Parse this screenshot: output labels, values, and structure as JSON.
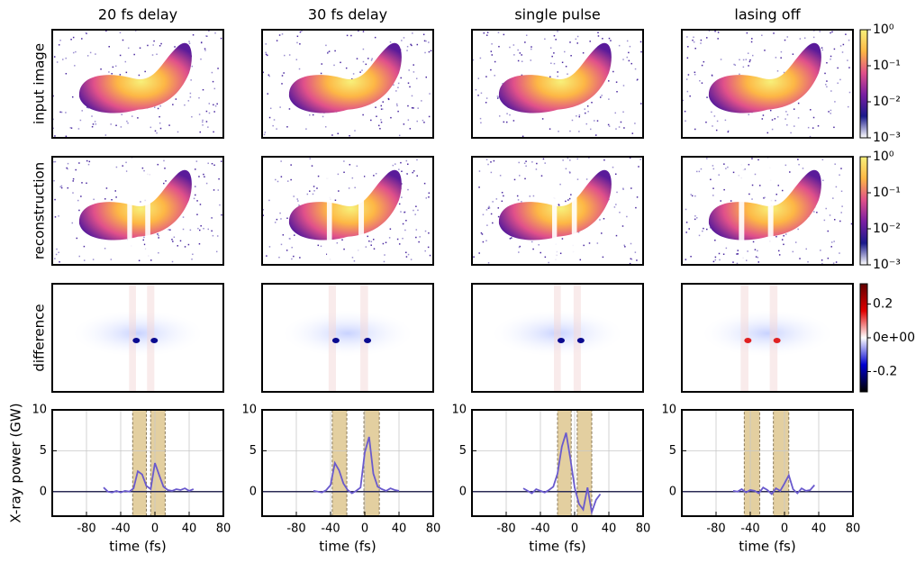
{
  "row_labels": [
    "input image",
    "reconstruction",
    "difference"
  ],
  "colorbars": [
    {
      "lim": [
        0.001,
        1
      ],
      "log": true,
      "ticks": [
        {
          "value": 1,
          "label": "10⁰"
        },
        {
          "value": 0.1,
          "label": "10⁻¹"
        },
        {
          "value": 0.01,
          "label": "10⁻²"
        },
        {
          "value": 0.001,
          "label": "10⁻³"
        }
      ],
      "colors": [
        "#ffffff",
        "#1a1a8c",
        "#7a1fa2",
        "#e0508a",
        "#fdb745",
        "#f7f07a"
      ]
    },
    {
      "lim": [
        0.001,
        1
      ],
      "log": true,
      "ticks": [
        {
          "value": 1,
          "label": "10⁰"
        },
        {
          "value": 0.1,
          "label": "10⁻¹"
        },
        {
          "value": 0.01,
          "label": "10⁻²"
        },
        {
          "value": 0.001,
          "label": "10⁻³"
        }
      ],
      "colors": [
        "#ffffff",
        "#1a1a8c",
        "#7a1fa2",
        "#e0508a",
        "#fdb745",
        "#f7f07a"
      ]
    },
    {
      "lim": [
        -0.32,
        0.32
      ],
      "log": false,
      "ticks": [
        0.2,
        {
          "value": 0,
          "label": "0e+00"
        },
        -0.2
      ],
      "colors": [
        "#000000",
        "#0000d0",
        "#ffffff",
        "#e00000",
        "#600000"
      ]
    }
  ],
  "chart_data": [
    {
      "type": "line",
      "title": "20 fs delay",
      "ylabel": "X-ray power (GW)",
      "xlabel": "time (fs)",
      "xlim": [
        -120,
        80
      ],
      "ylim": [
        -3,
        10
      ],
      "xticks": [
        -80,
        -40,
        0,
        40,
        80
      ],
      "yticks": [
        0,
        5,
        10
      ],
      "grid": true,
      "hline": 0,
      "color": "#6a5acd",
      "span_color": "#e3cfa0",
      "spans": [
        [
          -26,
          -10
        ],
        [
          -5,
          12
        ]
      ],
      "x": [
        -60,
        -55,
        -50,
        -45,
        -40,
        -35,
        -30,
        -25,
        -20,
        -15,
        -10,
        -5,
        0,
        5,
        10,
        15,
        20,
        25,
        30,
        35,
        40,
        45
      ],
      "values": [
        0.5,
        0,
        -0.1,
        0.1,
        -0.1,
        0.1,
        0,
        0.4,
        2.5,
        2.1,
        0.7,
        0.3,
        3.5,
        2.0,
        0.6,
        0.2,
        0.1,
        0.3,
        0.2,
        0.4,
        0.1,
        0.3
      ]
    },
    {
      "type": "line",
      "title": "30 fs delay",
      "xlabel": "time (fs)",
      "xlim": [
        -120,
        80
      ],
      "ylim": [
        -3,
        10
      ],
      "xticks": [
        -80,
        -40,
        0,
        40,
        80
      ],
      "yticks": [
        0,
        5,
        10
      ],
      "grid": true,
      "hline": 0,
      "color": "#6a5acd",
      "span_color": "#e3cfa0",
      "spans": [
        [
          -38,
          -21
        ],
        [
          -1,
          17
        ]
      ],
      "x": [
        -60,
        -55,
        -50,
        -45,
        -40,
        -35,
        -30,
        -25,
        -20,
        -15,
        -10,
        -5,
        0,
        5,
        10,
        15,
        20,
        25,
        30,
        35,
        40
      ],
      "values": [
        0.1,
        0,
        -0.1,
        0.2,
        0.8,
        3.5,
        2.6,
        1.0,
        0.2,
        -0.2,
        0.1,
        0.5,
        4.8,
        6.7,
        2.2,
        0.6,
        0.3,
        0.1,
        0.4,
        0.2,
        0.1
      ]
    },
    {
      "type": "line",
      "title": "single pulse",
      "xlabel": "time (fs)",
      "xlim": [
        -120,
        80
      ],
      "ylim": [
        -3,
        10
      ],
      "xticks": [
        -80,
        -40,
        0,
        40,
        80
      ],
      "yticks": [
        0,
        5,
        10
      ],
      "grid": true,
      "hline": 0,
      "color": "#6a5acd",
      "span_color": "#e3cfa0",
      "spans": [
        [
          -20,
          -4
        ],
        [
          3,
          20
        ]
      ],
      "x": [
        -60,
        -55,
        -50,
        -45,
        -40,
        -35,
        -30,
        -25,
        -20,
        -15,
        -10,
        -5,
        0,
        5,
        10,
        15,
        20,
        25,
        30
      ],
      "values": [
        0.4,
        0.1,
        -0.2,
        0.3,
        0.1,
        -0.1,
        0.2,
        0.6,
        2.2,
        5.5,
        7.2,
        4.0,
        0.5,
        -1.5,
        -2.2,
        0.5,
        -2.5,
        -1.0,
        -0.3
      ]
    },
    {
      "type": "line",
      "title": "lasing off",
      "xlabel": "time (fs)",
      "xlim": [
        -120,
        80
      ],
      "ylim": [
        -3,
        10
      ],
      "xticks": [
        -80,
        -40,
        0,
        40,
        80
      ],
      "yticks": [
        0,
        5,
        10
      ],
      "grid": true,
      "hline": 0,
      "color": "#6a5acd",
      "span_color": "#e3cfa0",
      "spans": [
        [
          -47,
          -29
        ],
        [
          -13,
          5
        ]
      ],
      "x": [
        -60,
        -55,
        -50,
        -45,
        -40,
        -35,
        -30,
        -25,
        -20,
        -15,
        -10,
        -5,
        0,
        5,
        10,
        15,
        20,
        25,
        30,
        35
      ],
      "values": [
        0.1,
        0,
        0.3,
        -0.1,
        0.2,
        0.1,
        -0.2,
        0.5,
        0.2,
        -0.3,
        0.4,
        0.1,
        1.0,
        2.0,
        0.3,
        -0.2,
        0.4,
        0.1,
        0.2,
        0.8
      ]
    }
  ]
}
